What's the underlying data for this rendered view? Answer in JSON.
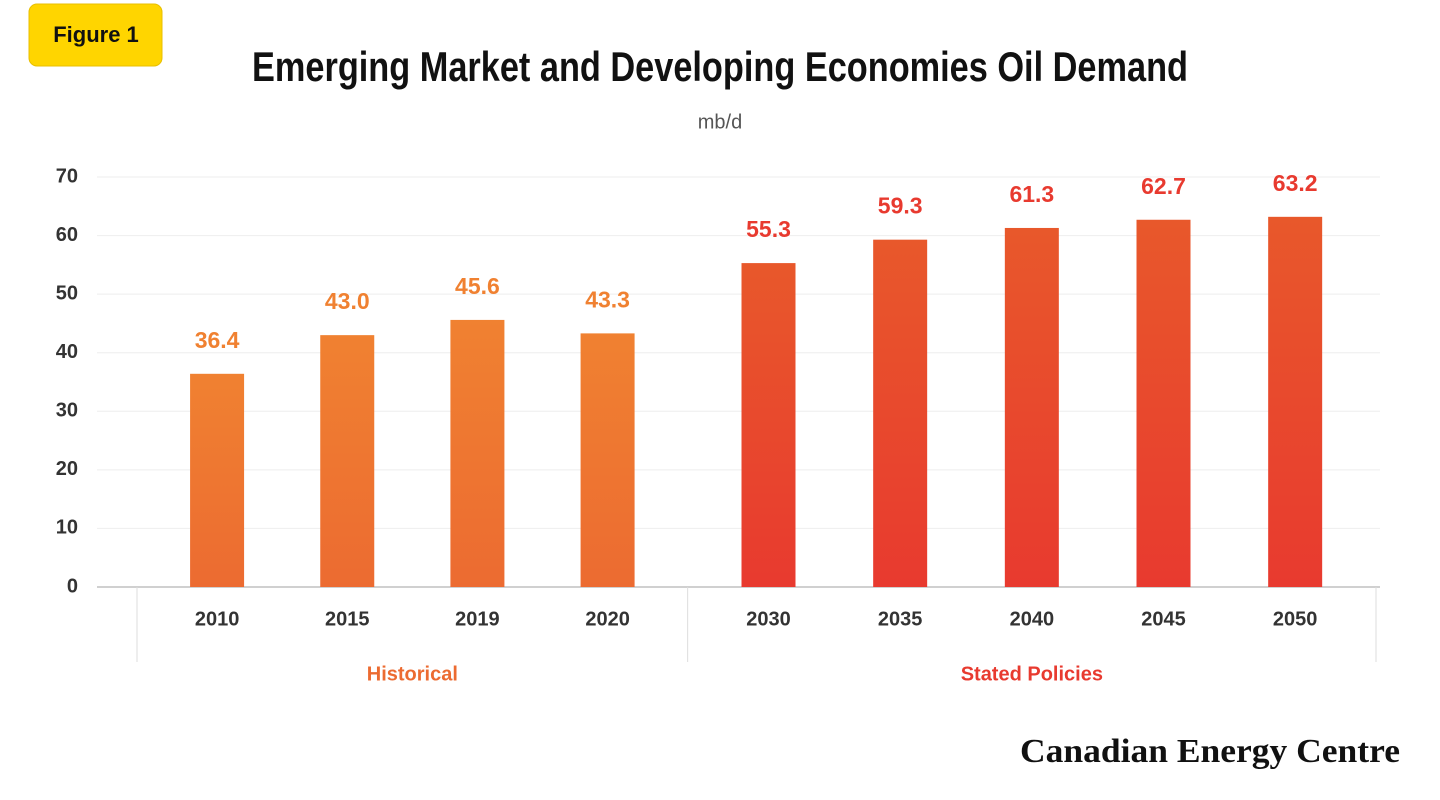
{
  "badge": "Figure 1",
  "brand": "Canadian Energy Centre",
  "chart_data": {
    "type": "bar",
    "title": "Emerging Market and Developing Economies Oil Demand",
    "subtitle": "mb/d",
    "categories": [
      "2010",
      "2015",
      "2019",
      "2020",
      "2030",
      "2035",
      "2040",
      "2045",
      "2050"
    ],
    "series": [
      {
        "name": "Historical",
        "color": "#f08131",
        "color_bottom": "#ec6b31",
        "values": [
          36.4,
          43,
          45.6,
          43.3,
          null,
          null,
          null,
          null,
          null
        ],
        "value_labels": [
          "36.4",
          "43.0",
          "45.6",
          "43.3",
          null,
          null,
          null,
          null,
          null
        ]
      },
      {
        "name": "Stated Policies",
        "color": "#e8582b",
        "color_bottom": "#e83a2f",
        "values": [
          null,
          null,
          null,
          null,
          55.3,
          59.3,
          61.3,
          62.7,
          63.2
        ],
        "value_labels": [
          null,
          null,
          null,
          null,
          "55.3",
          "59.3",
          "61.3",
          "62.7",
          "63.2"
        ]
      }
    ],
    "ylim": [
      0,
      70
    ],
    "yticks": [
      0,
      10,
      20,
      30,
      40,
      50,
      60,
      70
    ],
    "grid": true
  }
}
